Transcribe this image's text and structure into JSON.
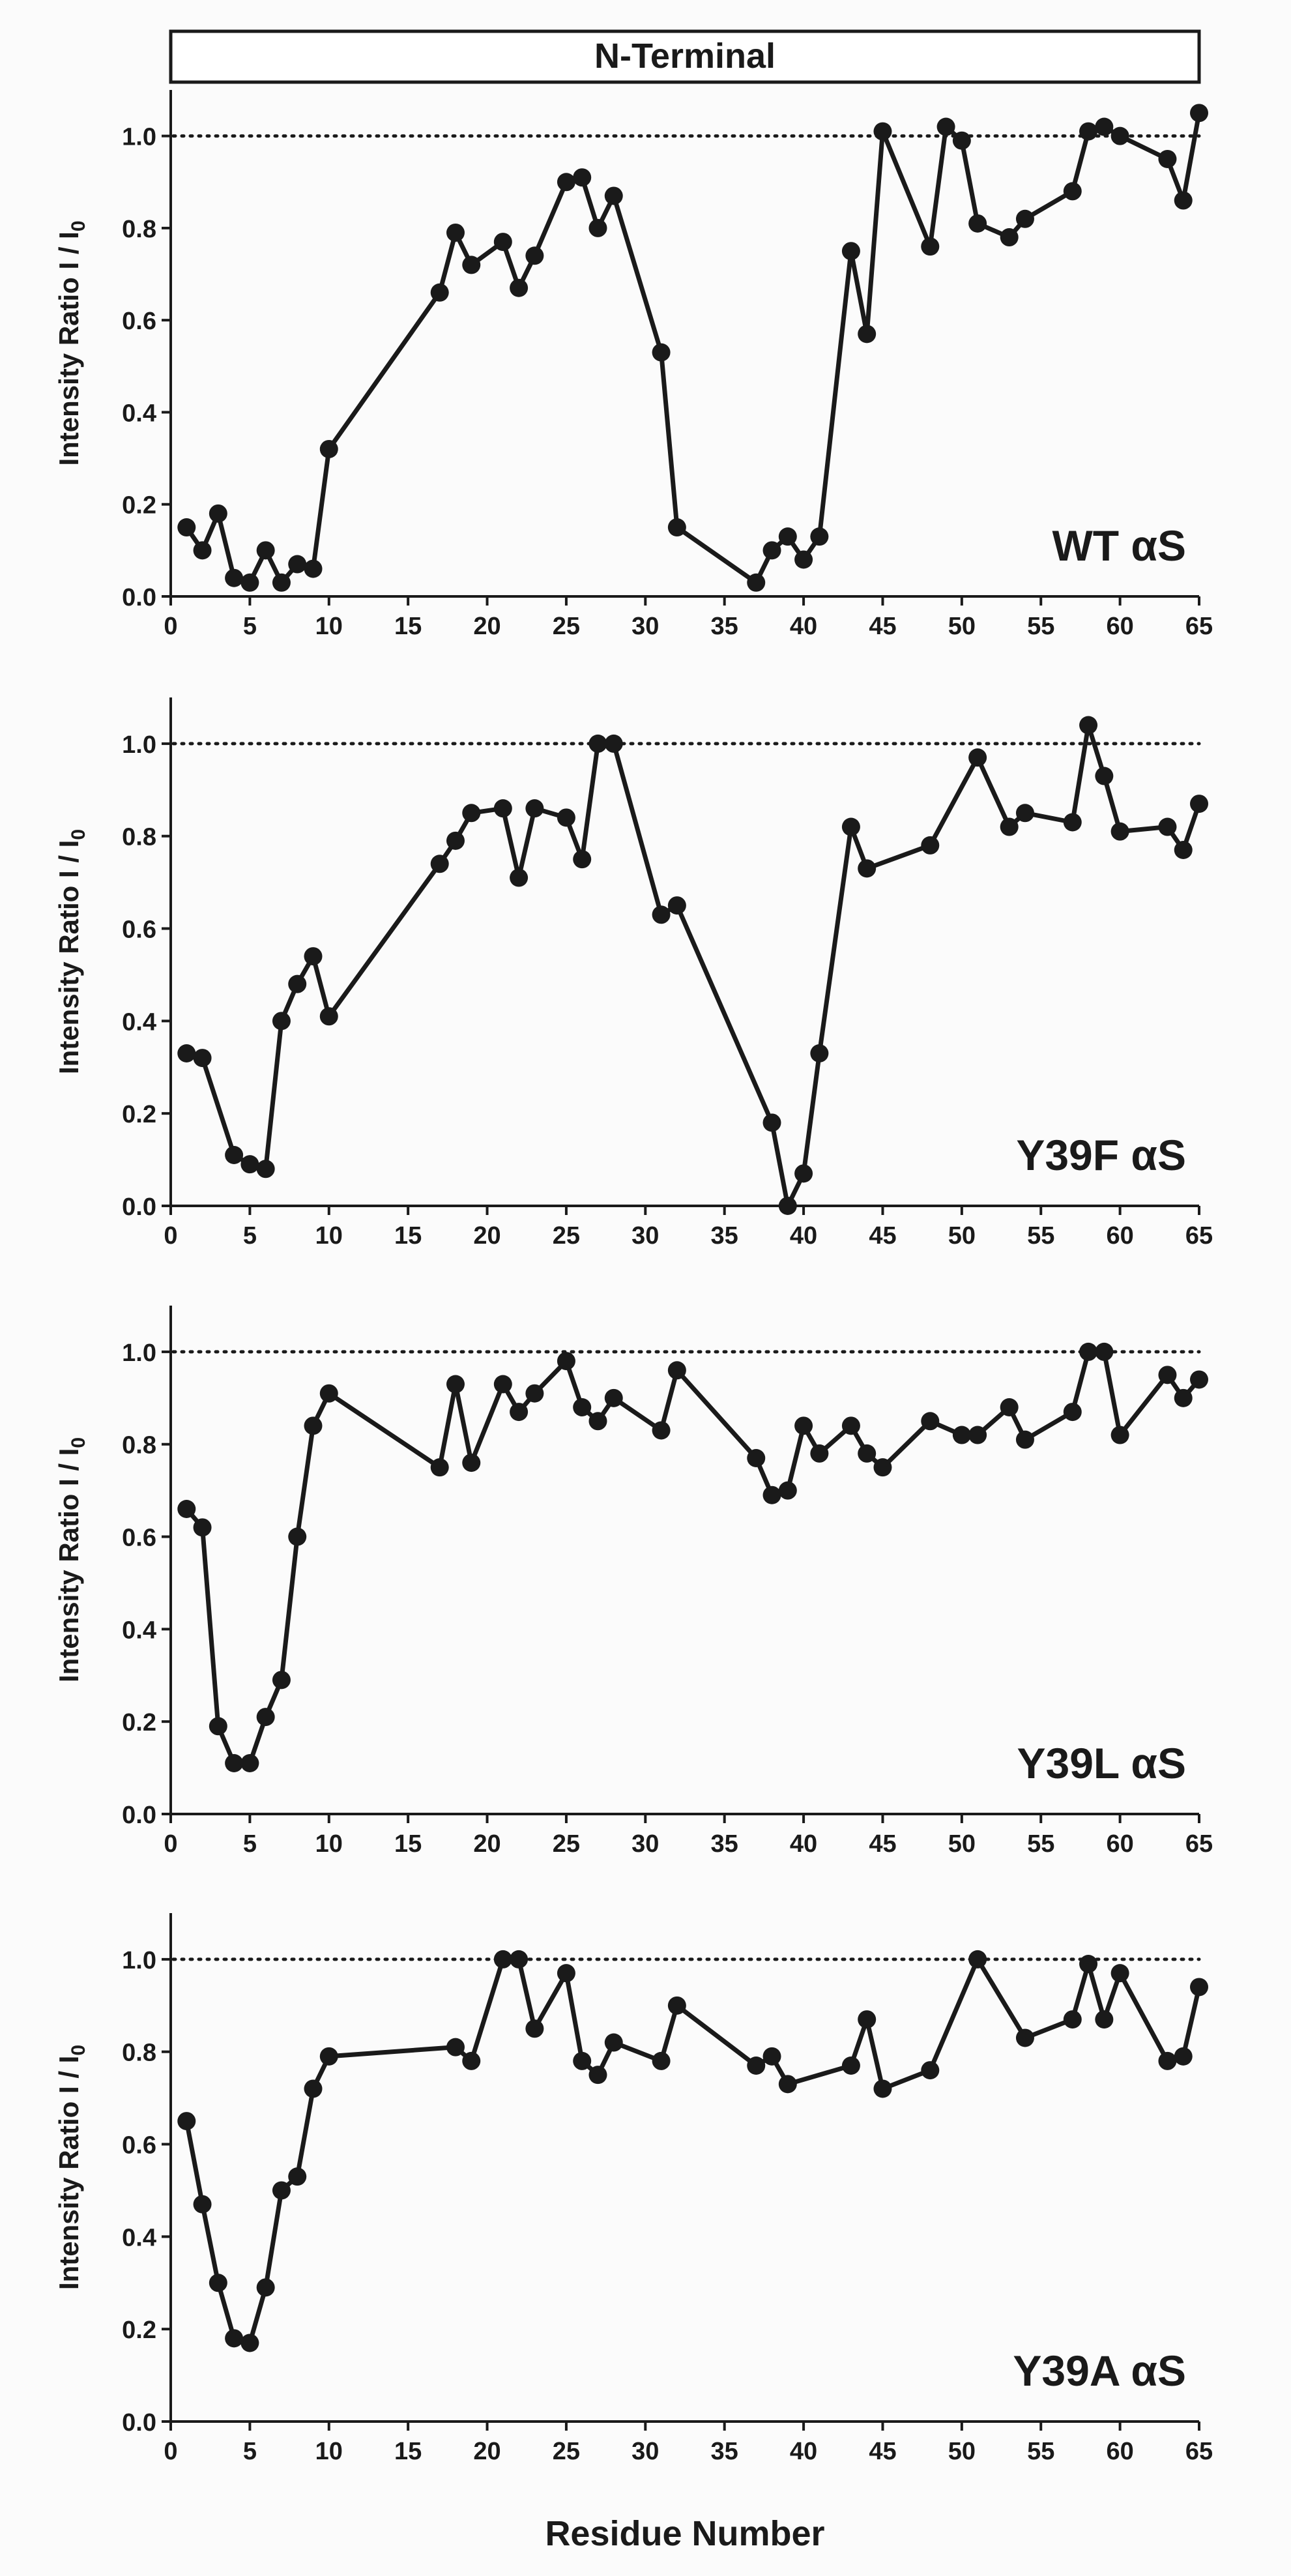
{
  "header": {
    "label": "N-Terminal"
  },
  "x_axis_label": "Residue Number",
  "y_axis_label_main": "Intensity Ratio I / I",
  "y_axis_label_sub": "0",
  "colors": {
    "line": "#1a1a1a",
    "reference": "#1a1a1a",
    "background": "#fbfbfb"
  },
  "chart_data": [
    {
      "type": "line",
      "title": "WT αS",
      "xlabel": "Residue Number",
      "ylabel": "Intensity Ratio I / I0",
      "xlim": [
        0,
        65
      ],
      "ylim": [
        0,
        1.1
      ],
      "xticks": [
        0,
        5,
        10,
        15,
        20,
        25,
        30,
        35,
        40,
        45,
        50,
        55,
        60,
        65
      ],
      "yticks": [
        0.0,
        0.2,
        0.4,
        0.6,
        0.8,
        1.0
      ],
      "reference_line": 1.0,
      "x": [
        1,
        2,
        3,
        4,
        5,
        6,
        7,
        8,
        9,
        10,
        17,
        18,
        19,
        21,
        22,
        23,
        25,
        26,
        27,
        28,
        31,
        32,
        37,
        38,
        39,
        40,
        41,
        43,
        44,
        45,
        48,
        49,
        50,
        51,
        53,
        54,
        57,
        58,
        59,
        60,
        63,
        64,
        65
      ],
      "y": [
        0.15,
        0.1,
        0.18,
        0.04,
        0.03,
        0.1,
        0.03,
        0.07,
        0.06,
        0.32,
        0.66,
        0.79,
        0.72,
        0.77,
        0.67,
        0.74,
        0.9,
        0.91,
        0.8,
        0.87,
        0.53,
        0.15,
        0.03,
        0.1,
        0.13,
        0.08,
        0.13,
        0.75,
        0.57,
        1.01,
        0.76,
        1.02,
        0.99,
        0.81,
        0.78,
        0.82,
        0.88,
        1.01,
        1.02,
        1.0,
        0.95,
        0.86,
        1.05
      ]
    },
    {
      "type": "line",
      "title": "Y39F αS",
      "xlabel": "Residue Number",
      "ylabel": "Intensity Ratio I / I0",
      "xlim": [
        0,
        65
      ],
      "ylim": [
        0,
        1.1
      ],
      "xticks": [
        0,
        5,
        10,
        15,
        20,
        25,
        30,
        35,
        40,
        45,
        50,
        55,
        60,
        65
      ],
      "yticks": [
        0.0,
        0.2,
        0.4,
        0.6,
        0.8,
        1.0
      ],
      "reference_line": 1.0,
      "x": [
        1,
        2,
        4,
        5,
        6,
        7,
        8,
        9,
        10,
        17,
        18,
        19,
        21,
        22,
        23,
        25,
        26,
        27,
        28,
        31,
        32,
        38,
        39,
        40,
        41,
        43,
        44,
        48,
        51,
        53,
        54,
        57,
        58,
        59,
        60,
        63,
        64,
        65
      ],
      "y": [
        0.33,
        0.32,
        0.11,
        0.09,
        0.08,
        0.4,
        0.48,
        0.54,
        0.41,
        0.74,
        0.79,
        0.85,
        0.86,
        0.71,
        0.86,
        0.84,
        0.75,
        1.0,
        1.0,
        0.63,
        0.65,
        0.18,
        0.0,
        0.07,
        0.33,
        0.82,
        0.73,
        0.78,
        0.97,
        0.82,
        0.85,
        0.83,
        1.04,
        0.93,
        0.81,
        0.82,
        0.77,
        0.87
      ]
    },
    {
      "type": "line",
      "title": "Y39L αS",
      "xlabel": "Residue Number",
      "ylabel": "Intensity Ratio I / I0",
      "xlim": [
        0,
        65
      ],
      "ylim": [
        0,
        1.1
      ],
      "xticks": [
        0,
        5,
        10,
        15,
        20,
        25,
        30,
        35,
        40,
        45,
        50,
        55,
        60,
        65
      ],
      "yticks": [
        0.0,
        0.2,
        0.4,
        0.6,
        0.8,
        1.0
      ],
      "reference_line": 1.0,
      "x": [
        1,
        2,
        3,
        4,
        5,
        6,
        7,
        8,
        9,
        10,
        17,
        18,
        19,
        21,
        22,
        23,
        25,
        26,
        27,
        28,
        31,
        32,
        37,
        38,
        39,
        40,
        41,
        43,
        44,
        45,
        48,
        50,
        51,
        53,
        54,
        57,
        58,
        59,
        60,
        63,
        64,
        65
      ],
      "y": [
        0.66,
        0.62,
        0.19,
        0.11,
        0.11,
        0.21,
        0.29,
        0.6,
        0.84,
        0.91,
        0.75,
        0.93,
        0.76,
        0.93,
        0.87,
        0.91,
        0.98,
        0.88,
        0.85,
        0.9,
        0.83,
        0.96,
        0.77,
        0.69,
        0.7,
        0.84,
        0.78,
        0.84,
        0.78,
        0.75,
        0.85,
        0.82,
        0.82,
        0.88,
        0.81,
        0.87,
        1.0,
        1.0,
        0.82,
        0.95,
        0.9,
        0.94
      ]
    },
    {
      "type": "line",
      "title": "Y39A αS",
      "xlabel": "Residue Number",
      "ylabel": "Intensity Ratio I / I0",
      "xlim": [
        0,
        65
      ],
      "ylim": [
        0,
        1.1
      ],
      "xticks": [
        0,
        5,
        10,
        15,
        20,
        25,
        30,
        35,
        40,
        45,
        50,
        55,
        60,
        65
      ],
      "yticks": [
        0.0,
        0.2,
        0.4,
        0.6,
        0.8,
        1.0
      ],
      "reference_line": 1.0,
      "x": [
        1,
        2,
        3,
        4,
        5,
        6,
        7,
        8,
        9,
        10,
        18,
        19,
        21,
        22,
        23,
        25,
        26,
        27,
        28,
        31,
        32,
        37,
        38,
        39,
        43,
        44,
        45,
        48,
        51,
        54,
        57,
        58,
        59,
        60,
        63,
        64,
        65
      ],
      "y": [
        0.65,
        0.47,
        0.3,
        0.18,
        0.17,
        0.29,
        0.5,
        0.53,
        0.72,
        0.79,
        0.81,
        0.78,
        1.0,
        1.0,
        0.85,
        0.97,
        0.78,
        0.75,
        0.82,
        0.78,
        0.9,
        0.77,
        0.79,
        0.73,
        0.77,
        0.87,
        0.72,
        0.76,
        1.0,
        0.83,
        0.87,
        0.99,
        0.87,
        0.97,
        0.78,
        0.79,
        0.94
      ]
    }
  ]
}
